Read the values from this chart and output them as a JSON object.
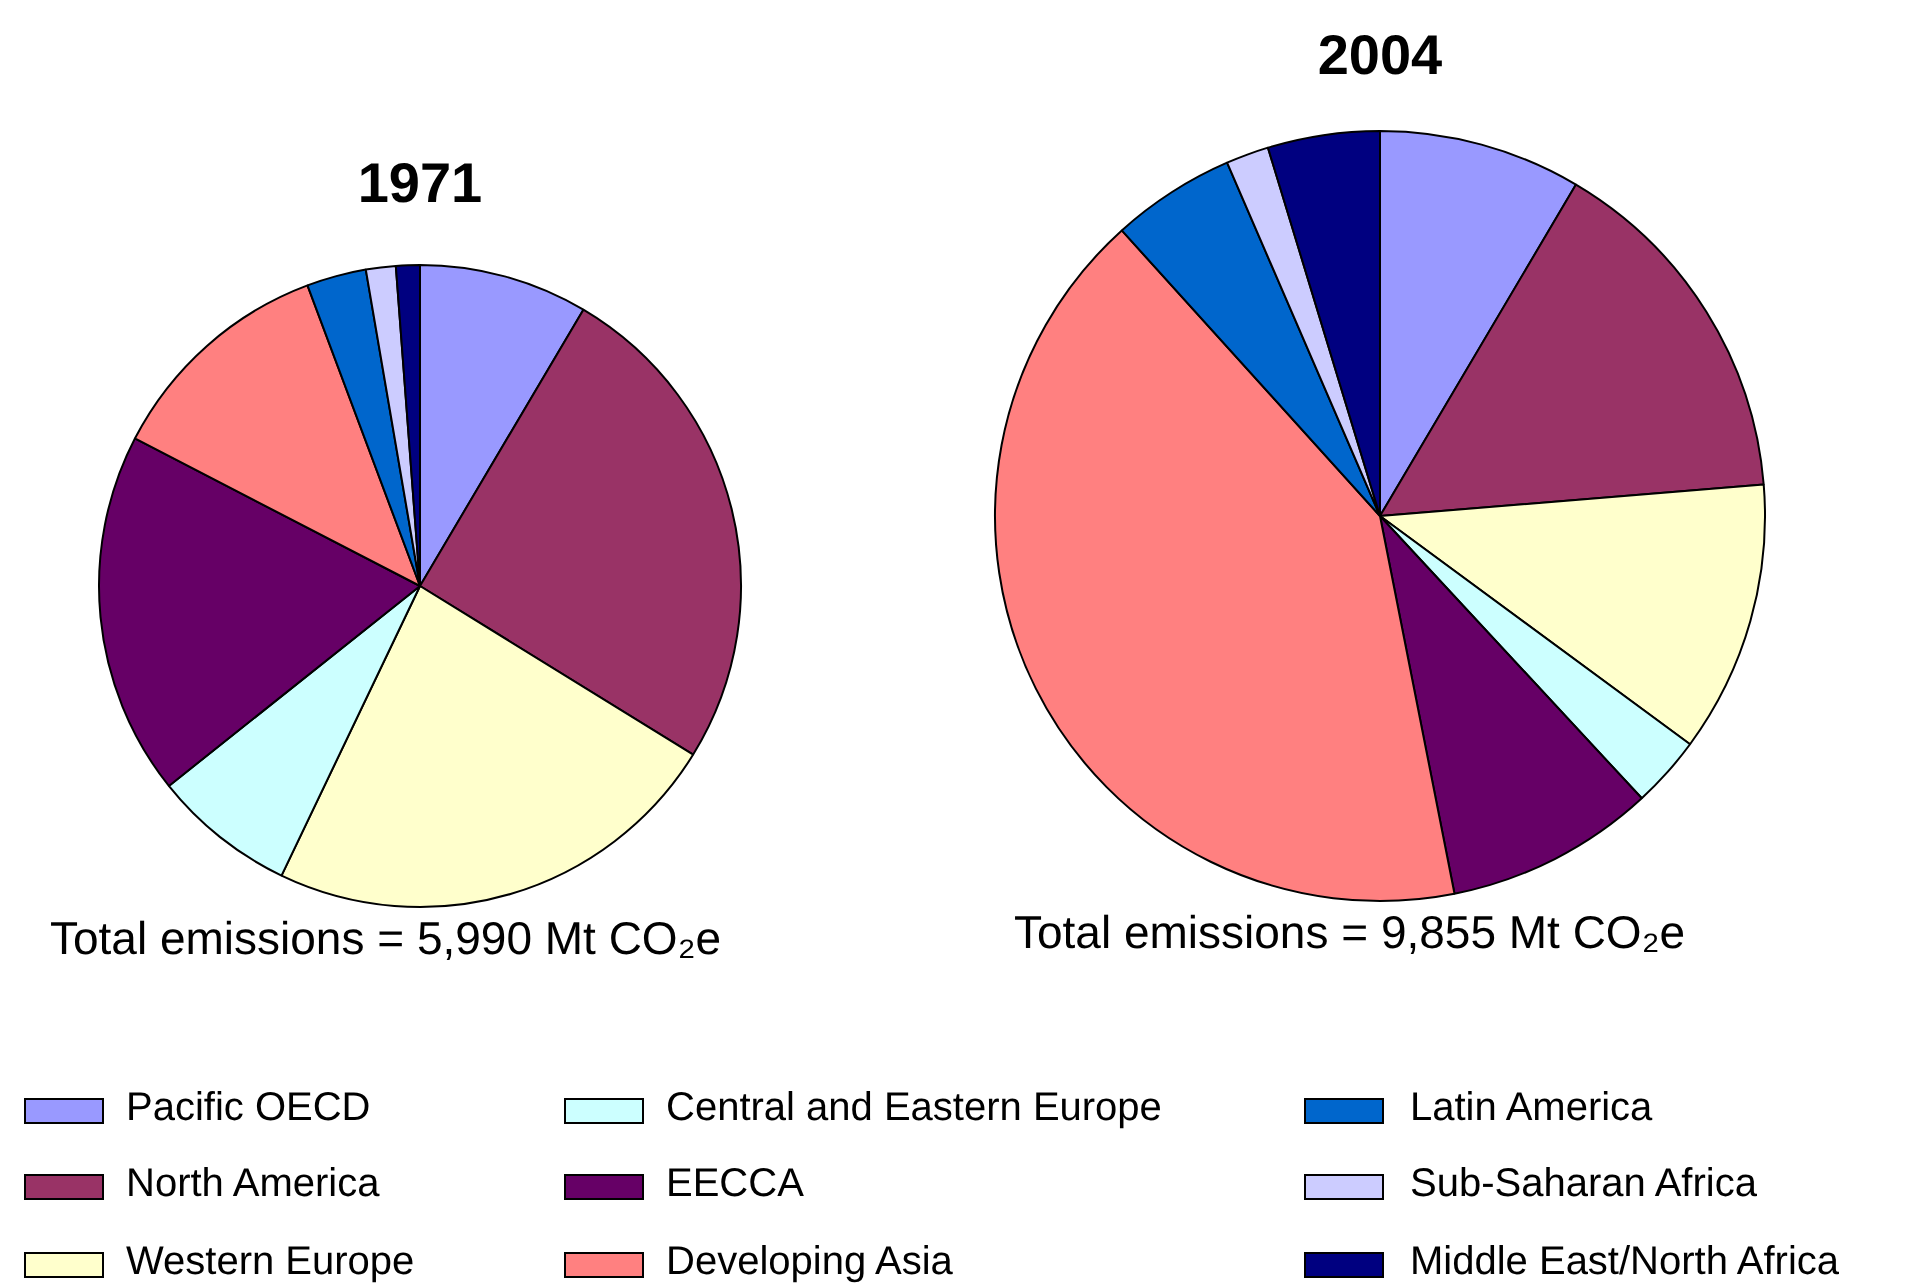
{
  "chart_data": {
    "type": "pie",
    "categories": [
      "Pacific OECD",
      "North America",
      "Western Europe",
      "Central and Eastern Europe",
      "EECCA",
      "Developing Asia",
      "Latin America",
      "Sub-Saharan Africa",
      "Middle East/North Africa"
    ],
    "colors": [
      "#9999ff",
      "#993366",
      "#ffffcc",
      "#ccffff",
      "#660066",
      "#ff8080",
      "#0066cc",
      "#ccccff",
      "#000080"
    ],
    "series": [
      {
        "name": "1971",
        "values": [
          8.5,
          25.3,
          23.3,
          7.2,
          18.3,
          11.7,
          3.0,
          1.5,
          1.2
        ]
      },
      {
        "name": "2004",
        "values": [
          8.5,
          15.2,
          11.4,
          3.0,
          8.8,
          41.4,
          5.2,
          1.8,
          4.7
        ]
      }
    ],
    "annotations": [
      "Total emissions = 5,990 Mt CO₂e",
      "Total emissions = 9,855 Mt CO₂e"
    ],
    "legend": "bottom"
  }
}
